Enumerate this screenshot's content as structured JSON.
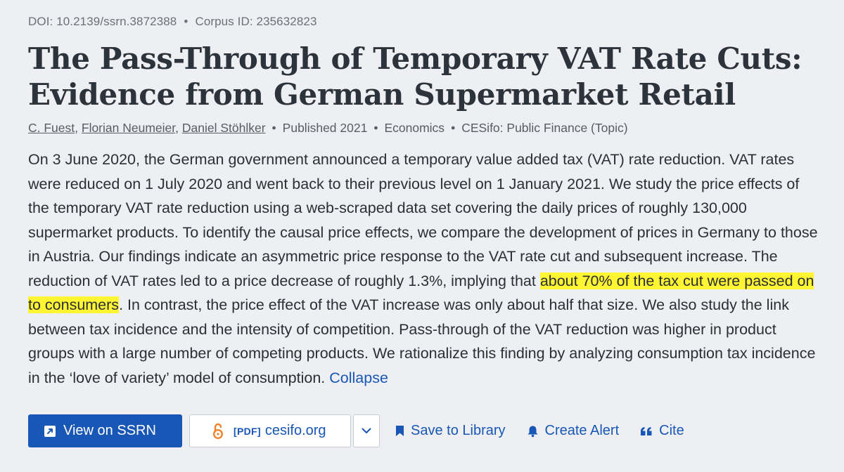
{
  "meta": {
    "doi": "DOI: 10.2139/ssrn.3872388",
    "separator": "•",
    "corpus": "Corpus ID: 235632823"
  },
  "paper": {
    "title": "The Pass-Through of Temporary VAT Rate Cuts: Evidence from German Supermarket Retail",
    "authors": [
      "C. Fuest",
      "Florian Neumeier",
      "Daniel Stöhlker"
    ],
    "published": "Published 2021",
    "field": "Economics",
    "venue": "CESifo: Public Finance (Topic)"
  },
  "abstract": {
    "before_highlight": "On 3 June 2020, the German government announced a temporary value added tax (VAT) rate reduction. VAT rates were reduced on 1 July 2020 and went back to their previous level on 1 January 2021. We study the price effects of the temporary VAT rate reduction using a web-scraped data set covering the daily prices of roughly 130,000 supermarket products. To identify the causal price effects, we compare the development of prices in Germany to those in Austria. Our findings indicate an asymmetric price response to the VAT rate cut and subsequent increase. The reduction of VAT rates led to a price decrease of roughly 1.3%, implying that ",
    "highlight": "about 70% of the tax cut were passed on to consumers",
    "after_highlight": ". In contrast, the price effect of the VAT increase was only about half that size. We also study the link between tax incidence and the intensity of competition. Pass-through of the VAT reduction was higher in product groups with a large number of competing products. We rationalize this finding by analyzing consumption tax incidence in the ‘love of variety’ model of consumption.",
    "collapse_label": "Collapse",
    "highlight_color": "#fff533"
  },
  "actions": {
    "view_label": "View on SSRN",
    "view_icon": "external-link-icon",
    "pdf_tag": "[PDF]",
    "pdf_host": "cesifo.org",
    "pdf_icon": "open-access-lock-icon",
    "more_icon": "chevron-down-icon",
    "save_label": "Save to Library",
    "save_icon": "bookmark-icon",
    "alert_label": "Create Alert",
    "alert_icon": "bell-icon",
    "cite_label": "Cite",
    "cite_icon": "quote-icon"
  },
  "colors": {
    "primary": "#1857b6",
    "background": "#eeeff2",
    "open_access": "#f2812b"
  }
}
